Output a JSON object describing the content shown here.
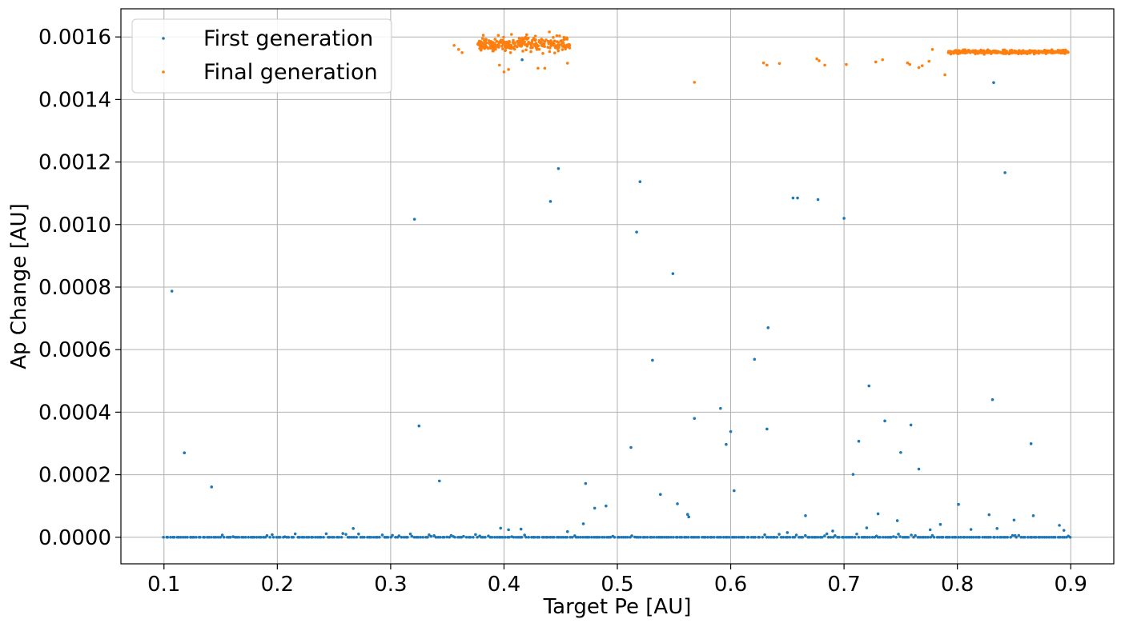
{
  "chart_data": {
    "type": "scatter",
    "xlabel": "Target Pe [AU]",
    "ylabel": "Ap Change [AU]",
    "xlim": [
      0.062,
      0.938
    ],
    "ylim": [
      -8.5e-05,
      0.00169
    ],
    "xticks": [
      0.1,
      0.2,
      0.3,
      0.4,
      0.5,
      0.6,
      0.7,
      0.8,
      0.9
    ],
    "xtick_labels": [
      "0.1",
      "0.2",
      "0.3",
      "0.4",
      "0.5",
      "0.6",
      "0.7",
      "0.8",
      "0.9"
    ],
    "yticks": [
      0.0,
      0.0002,
      0.0004,
      0.0006,
      0.0008,
      0.001,
      0.0012,
      0.0014,
      0.0016
    ],
    "ytick_labels": [
      "0.0000",
      "0.0002",
      "0.0004",
      "0.0006",
      "0.0008",
      "0.0010",
      "0.0012",
      "0.0014",
      "0.0016"
    ],
    "grid": true,
    "legend_position": "top-left",
    "series": [
      {
        "name": "First generation",
        "color": "#1f77b4",
        "points": [
          [
            0.107,
            0.000787
          ],
          [
            0.118,
            0.00027
          ],
          [
            0.142,
            0.000161
          ],
          [
            0.321,
            0.001017
          ],
          [
            0.325,
            0.000356
          ],
          [
            0.343,
            0.00018
          ],
          [
            0.416,
            0.001527
          ],
          [
            0.441,
            0.001074
          ],
          [
            0.448,
            0.001179
          ],
          [
            0.47,
            4.3e-05
          ],
          [
            0.472,
            0.000172
          ],
          [
            0.48,
            9.3e-05
          ],
          [
            0.49,
            0.0001
          ],
          [
            0.512,
            0.000287
          ],
          [
            0.517,
            0.000976
          ],
          [
            0.52,
            0.001137
          ],
          [
            0.531,
            0.000566
          ],
          [
            0.538,
            0.000137
          ],
          [
            0.549,
            0.000843
          ],
          [
            0.553,
            0.000107
          ],
          [
            0.562,
            7.3e-05
          ],
          [
            0.563,
            6.5e-05
          ],
          [
            0.568,
            0.00038
          ],
          [
            0.591,
            0.000412
          ],
          [
            0.596,
            0.000297
          ],
          [
            0.6,
            0.000338
          ],
          [
            0.603,
            0.000149
          ],
          [
            0.621,
            0.000569
          ],
          [
            0.632,
            0.000346
          ],
          [
            0.633,
            0.00067
          ],
          [
            0.655,
            0.001085
          ],
          [
            0.659,
            0.001085
          ],
          [
            0.666,
            6.9e-05
          ],
          [
            0.677,
            0.00108
          ],
          [
            0.7,
            0.00102
          ],
          [
            0.708,
            0.000201
          ],
          [
            0.713,
            0.000307
          ],
          [
            0.722,
            0.000484
          ],
          [
            0.73,
            7.5e-05
          ],
          [
            0.736,
            0.000372
          ],
          [
            0.747,
            5.3e-05
          ],
          [
            0.75,
            0.000271
          ],
          [
            0.759,
            0.000359
          ],
          [
            0.766,
            0.000218
          ],
          [
            0.801,
            0.000105
          ],
          [
            0.828,
            7.2e-05
          ],
          [
            0.831,
            0.00044
          ],
          [
            0.832,
            0.001454
          ],
          [
            0.842,
            0.001166
          ],
          [
            0.85,
            5.5e-05
          ],
          [
            0.865,
            0.000299
          ],
          [
            0.867,
            6.9e-05
          ],
          [
            0.89,
            3.8e-05
          ],
          [
            0.267,
            2.8e-05
          ],
          [
            0.397,
            2.9e-05
          ],
          [
            0.404,
            2.4e-05
          ],
          [
            0.415,
            2.6e-05
          ],
          [
            0.456,
            1.8e-05
          ],
          [
            0.65,
            1.5e-05
          ],
          [
            0.69,
            2e-05
          ],
          [
            0.72,
            3e-05
          ],
          [
            0.776,
            2.4e-05
          ],
          [
            0.785,
            4.1e-05
          ],
          [
            0.812,
            2.5e-05
          ],
          [
            0.835,
            2.8e-05
          ],
          [
            0.894,
            2.2e-05
          ]
        ],
        "baseline_ranges": [
          [
            0.1,
            0.9
          ]
        ],
        "baseline_value": 0.0
      },
      {
        "name": "Final generation",
        "color": "#ff7f0e",
        "points": [
          [
            0.356,
            0.001573
          ],
          [
            0.36,
            0.00156
          ],
          [
            0.363,
            0.00155
          ],
          [
            0.568,
            0.001455
          ],
          [
            0.629,
            0.001517
          ],
          [
            0.632,
            0.00151
          ],
          [
            0.643,
            0.001515
          ],
          [
            0.676,
            0.00153
          ],
          [
            0.678,
            0.001524
          ],
          [
            0.683,
            0.00151
          ],
          [
            0.702,
            0.001512
          ],
          [
            0.728,
            0.00152
          ],
          [
            0.734,
            0.001527
          ],
          [
            0.756,
            0.001517
          ],
          [
            0.758,
            0.001512
          ],
          [
            0.766,
            0.001502
          ],
          [
            0.769,
            0.001508
          ],
          [
            0.775,
            0.001522
          ],
          [
            0.778,
            0.00156
          ],
          [
            0.789,
            0.001479
          ],
          [
            0.4,
            0.001488
          ],
          [
            0.404,
            0.001496
          ],
          [
            0.396,
            0.00151
          ],
          [
            0.43,
            0.0015
          ],
          [
            0.436,
            0.0015
          ],
          [
            0.456,
            0.001516
          ],
          [
            0.44,
            0.001616
          ],
          [
            0.42,
            0.001607
          ],
          [
            0.395,
            0.001605
          ]
        ],
        "clusters": [
          {
            "x_range": [
              0.377,
              0.458
            ],
            "y_center": 0.001575,
            "y_spread": 3.5e-05,
            "count": 260
          },
          {
            "x_range": [
              0.792,
              0.898
            ],
            "y_center": 0.001552,
            "y_spread": 9e-06,
            "count": 330
          }
        ]
      }
    ]
  }
}
